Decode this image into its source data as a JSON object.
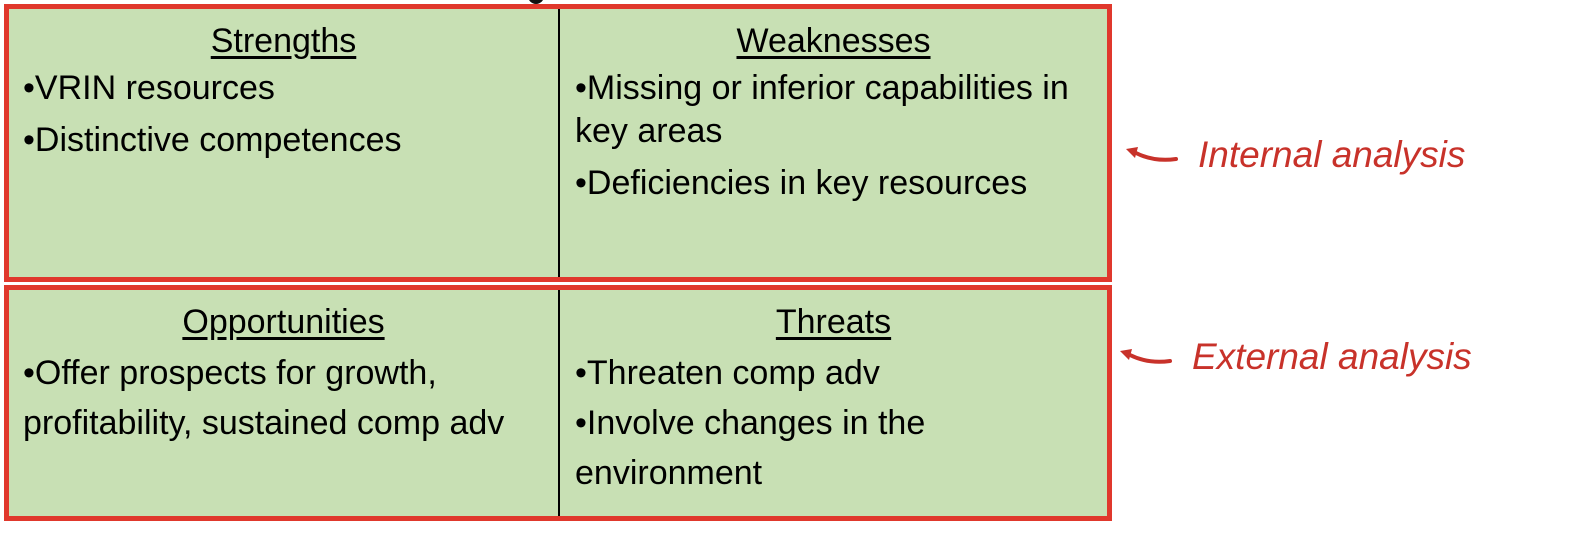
{
  "swot": {
    "strengths": {
      "title": "Strengths",
      "items": [
        "•VRIN resources",
        "•Distinctive competences"
      ]
    },
    "weaknesses": {
      "title": "Weaknesses",
      "items": [
        "•Missing or inferior capabilities in key areas",
        "•Deficiencies in key resources"
      ]
    },
    "opportunities": {
      "title": "Opportunities",
      "items": [
        "•Offer prospects for growth, profitability, sustained comp adv"
      ]
    },
    "threats": {
      "title": "Threats",
      "items": [
        "•Threaten comp adv",
        "•Involve changes in the environment"
      ]
    }
  },
  "annotations": {
    "internal": "Internal analysis",
    "external": "External analysis"
  },
  "colors": {
    "cell_fill": "#c8e0b4",
    "frame": "#e0382c",
    "annotation_text": "#c8322a",
    "divider": "#000000"
  },
  "icons": {
    "annotation_arrow": "curved-arrow-left-icon"
  }
}
